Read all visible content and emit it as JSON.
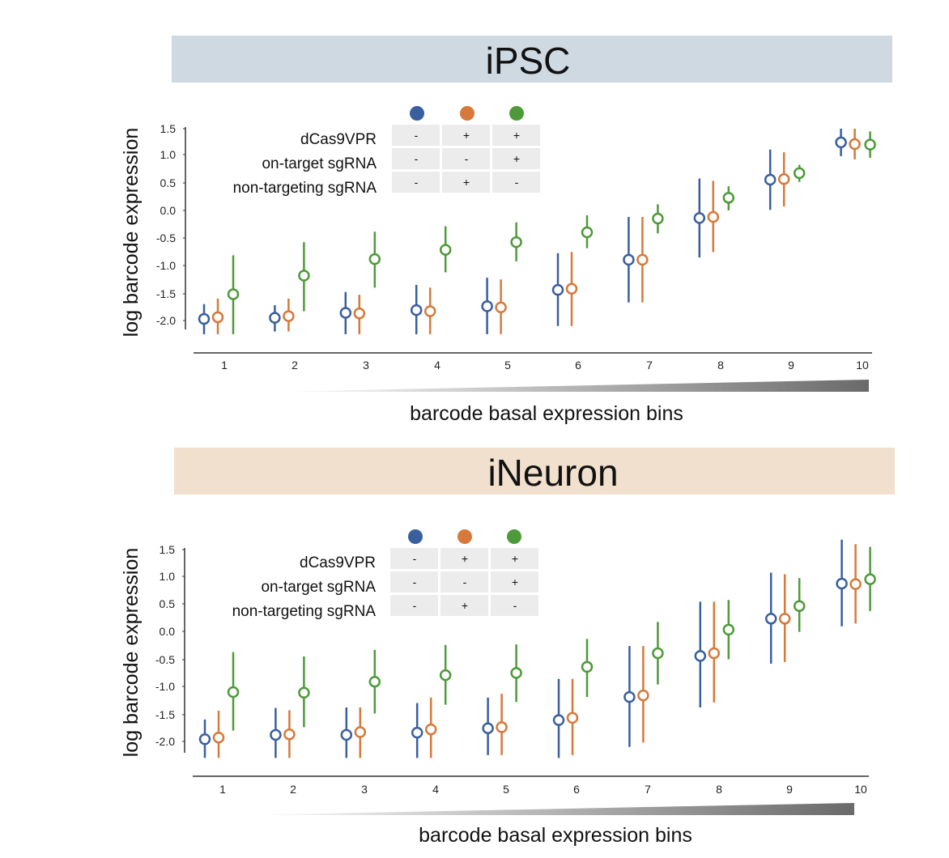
{
  "colors": {
    "blue": "#3a5f9e",
    "orange": "#d6793a",
    "green": "#4e9a3a",
    "ipsc_banner": "#cfd9e2",
    "ineuron_banner": "#f1e0ce",
    "cell_bg": "#ececec",
    "axis": "#333333"
  },
  "chart_data": [
    {
      "type": "scatter",
      "title": "iPSC",
      "xlabel": "barcode basal expression bins",
      "ylabel": "log barcode expression",
      "ylim": [
        -2.2,
        1.6
      ],
      "y_ticks": [
        "1.5",
        "1.0",
        "0.5",
        "0.0",
        "-0.5",
        "-1.0",
        "-1.5",
        "-2.0"
      ],
      "categories": [
        "1",
        "2",
        "3",
        "4",
        "5",
        "6",
        "7",
        "8",
        "9",
        "10"
      ],
      "conditions": {
        "rows": [
          "dCas9VPR",
          "on-target sgRNA",
          "non-targeting sgRNA"
        ],
        "columns": [
          {
            "color": "blue",
            "values": [
              "-",
              "-",
              "-"
            ]
          },
          {
            "color": "orange",
            "values": [
              "+",
              "-",
              "+"
            ]
          },
          {
            "color": "green",
            "values": [
              "+",
              "+",
              "-"
            ]
          }
        ]
      },
      "series": [
        {
          "name": "blue",
          "values": [
            -1.97,
            -1.95,
            -1.86,
            -1.81,
            -1.74,
            -1.44,
            -0.89,
            -0.13,
            0.57,
            1.25
          ],
          "lower": [
            -2.25,
            -2.2,
            -2.25,
            -2.25,
            -2.25,
            -2.1,
            -1.67,
            -0.85,
            0.02,
            1.0
          ],
          "upper": [
            -1.7,
            -1.72,
            -1.48,
            -1.35,
            -1.22,
            -0.77,
            -0.11,
            0.59,
            1.12,
            1.5
          ]
        },
        {
          "name": "orange",
          "values": [
            -1.94,
            -1.92,
            -1.87,
            -1.83,
            -1.76,
            -1.42,
            -0.89,
            -0.11,
            0.58,
            1.22
          ],
          "lower": [
            -2.25,
            -2.2,
            -2.25,
            -2.25,
            -2.25,
            -2.1,
            -1.67,
            -0.75,
            0.08,
            0.94
          ],
          "upper": [
            -1.6,
            -1.6,
            -1.53,
            -1.4,
            -1.25,
            -0.75,
            -0.11,
            0.55,
            1.07,
            1.5
          ]
        },
        {
          "name": "green",
          "values": [
            -1.52,
            -1.18,
            -0.88,
            -0.71,
            -0.57,
            -0.39,
            -0.14,
            0.24,
            0.69,
            1.21
          ],
          "lower": [
            -2.25,
            -1.83,
            -1.4,
            -1.12,
            -0.92,
            -0.68,
            -0.41,
            0.01,
            0.53,
            0.97
          ],
          "upper": [
            -0.81,
            -0.57,
            -0.38,
            -0.28,
            -0.21,
            -0.08,
            0.12,
            0.45,
            0.84,
            1.45
          ]
        }
      ]
    },
    {
      "type": "scatter",
      "title": "iNeuron",
      "xlabel": "barcode basal expression bins",
      "ylabel": "log barcode expression",
      "ylim": [
        -2.3,
        1.5
      ],
      "y_ticks": [
        "1.5",
        "1.0",
        "0.5",
        "0.0",
        "-0.5",
        "-1.0",
        "-1.5",
        "-2.0"
      ],
      "categories": [
        "1",
        "2",
        "3",
        "4",
        "5",
        "6",
        "7",
        "8",
        "9",
        "10"
      ],
      "conditions": {
        "rows": [
          "dCas9VPR",
          "on-target sgRNA",
          "non-targeting sgRNA"
        ],
        "columns": [
          {
            "color": "blue",
            "values": [
              "-",
              "-",
              "-"
            ]
          },
          {
            "color": "orange",
            "values": [
              "+",
              "-",
              "+"
            ]
          },
          {
            "color": "green",
            "values": [
              "+",
              "+",
              "-"
            ]
          }
        ]
      },
      "series": [
        {
          "name": "blue",
          "values": [
            -1.96,
            -1.88,
            -1.88,
            -1.84,
            -1.76,
            -1.61,
            -1.19,
            -0.44,
            0.24,
            0.88
          ],
          "lower": [
            -2.3,
            -2.3,
            -2.3,
            -2.3,
            -2.25,
            -2.3,
            -2.1,
            -1.38,
            -0.58,
            0.1
          ],
          "upper": [
            -1.6,
            -1.39,
            -1.38,
            -1.3,
            -1.2,
            -0.86,
            -0.26,
            0.55,
            1.08,
            1.68
          ]
        },
        {
          "name": "orange",
          "values": [
            -1.93,
            -1.87,
            -1.83,
            -1.78,
            -1.74,
            -1.57,
            -1.16,
            -0.39,
            0.24,
            0.87
          ],
          "lower": [
            -2.3,
            -2.3,
            -2.3,
            -2.3,
            -2.25,
            -2.25,
            -2.02,
            -1.29,
            -0.55,
            0.15
          ],
          "upper": [
            -1.44,
            -1.43,
            -1.38,
            -1.2,
            -1.13,
            -0.86,
            -0.26,
            0.55,
            1.05,
            1.6
          ]
        },
        {
          "name": "green",
          "values": [
            -1.1,
            -1.11,
            -0.91,
            -0.79,
            -0.75,
            -0.64,
            -0.39,
            0.04,
            0.47,
            0.96
          ],
          "lower": [
            -1.8,
            -1.74,
            -1.49,
            -1.33,
            -1.28,
            -1.19,
            -0.96,
            -0.5,
            0.0,
            0.38
          ],
          "upper": [
            -0.37,
            -0.45,
            -0.33,
            -0.24,
            -0.23,
            -0.13,
            0.18,
            0.58,
            0.98,
            1.55
          ]
        }
      ]
    }
  ]
}
